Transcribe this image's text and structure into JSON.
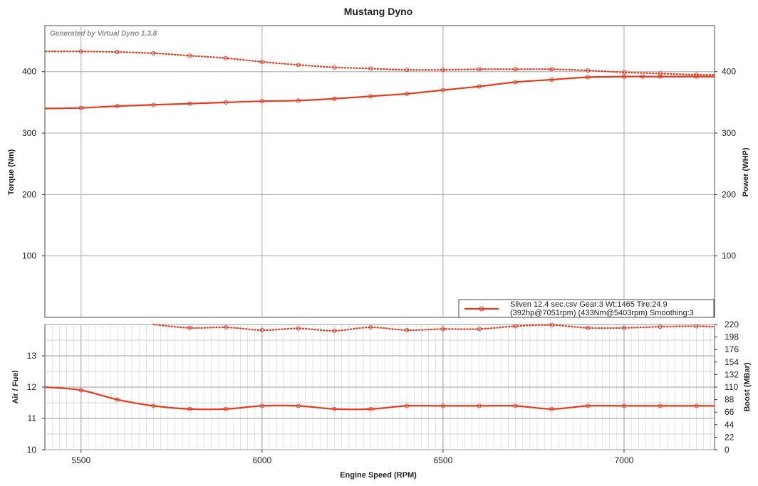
{
  "chart_data": [
    {
      "type": "line",
      "title": "Mustang Dyno",
      "watermark": "Generated by Virtual Dyno 1.3.8",
      "xlabel": "Engine Speed (RPM)",
      "ylabel": "Torque (Nm)",
      "y2label": "Power (WHP)",
      "xlim": [
        5400,
        7250
      ],
      "ylim": [
        0,
        475
      ],
      "y2lim": [
        0,
        475
      ],
      "x_ticks": [
        "5500",
        "6000",
        "6500",
        "7000"
      ],
      "y_ticks": [
        "100",
        "200",
        "300",
        "400"
      ],
      "y2_ticks": [
        "100",
        "200",
        "300",
        "400"
      ],
      "grid": true,
      "legend": {
        "position": "bottom-right",
        "line1": "Sliven 12.4 sec.csv Gear:3 Wt:1465 Tire:24.9",
        "line2": "(392hp@7051rpm) (433Nm@5403rpm) Smoothing:3",
        "color": "#e8391c"
      },
      "series": [
        {
          "style": "solid",
          "axis": "right",
          "color": "#e8391c",
          "x": [
            5400,
            5500,
            5600,
            5700,
            5800,
            5900,
            6000,
            6100,
            6200,
            6300,
            6400,
            6500,
            6600,
            6700,
            6800,
            6900,
            7000,
            7051,
            7100,
            7200,
            7250
          ],
          "y": [
            340,
            341,
            344,
            346,
            348,
            350,
            352,
            353,
            356,
            360,
            364,
            370,
            376,
            383,
            387,
            391,
            392,
            392,
            392,
            392,
            392
          ]
        },
        {
          "style": "dotted",
          "axis": "left",
          "color": "#e8391c",
          "x": [
            5403,
            5500,
            5600,
            5700,
            5800,
            5900,
            6000,
            6100,
            6200,
            6300,
            6400,
            6500,
            6600,
            6700,
            6800,
            6900,
            7000,
            7100,
            7200,
            7250
          ],
          "y": [
            433,
            433,
            432,
            430,
            426,
            422,
            416,
            411,
            407,
            405,
            403,
            403,
            404,
            404,
            404,
            402,
            399,
            397,
            395,
            395
          ]
        }
      ]
    },
    {
      "type": "line",
      "xlabel": "Engine Speed (RPM)",
      "ylabel": "Air / Fuel",
      "y2label": "Boost (MBar)",
      "xlim": [
        5400,
        7250
      ],
      "ylim": [
        10,
        14
      ],
      "y2lim": [
        0,
        220
      ],
      "y_ticks": [
        "10",
        "11",
        "12",
        "13"
      ],
      "y2_ticks": [
        "0",
        "22",
        "44",
        "66",
        "88",
        "110",
        "132",
        "154",
        "176",
        "198",
        "220"
      ],
      "grid": true,
      "series": [
        {
          "style": "solid",
          "axis": "left",
          "color": "#e8391c",
          "x": [
            5400,
            5500,
            5600,
            5700,
            5800,
            5900,
            6000,
            6100,
            6200,
            6300,
            6400,
            6500,
            6600,
            6700,
            6800,
            6900,
            7000,
            7100,
            7200,
            7250
          ],
          "y": [
            12.0,
            11.9,
            11.6,
            11.4,
            11.3,
            11.3,
            11.4,
            11.4,
            11.3,
            11.3,
            11.4,
            11.4,
            11.4,
            11.4,
            11.3,
            11.4,
            11.4,
            11.4,
            11.4,
            11.4
          ]
        },
        {
          "style": "dotted",
          "axis": "right",
          "color": "#e8391c",
          "x": [
            5700,
            5800,
            5900,
            6000,
            6100,
            6200,
            6300,
            6400,
            6500,
            6600,
            6700,
            6800,
            6900,
            7000,
            7100,
            7200,
            7250
          ],
          "y": [
            220,
            214,
            215,
            210,
            213,
            209,
            215,
            210,
            212,
            212,
            217,
            219,
            214,
            214,
            216,
            217,
            216
          ]
        }
      ]
    }
  ]
}
